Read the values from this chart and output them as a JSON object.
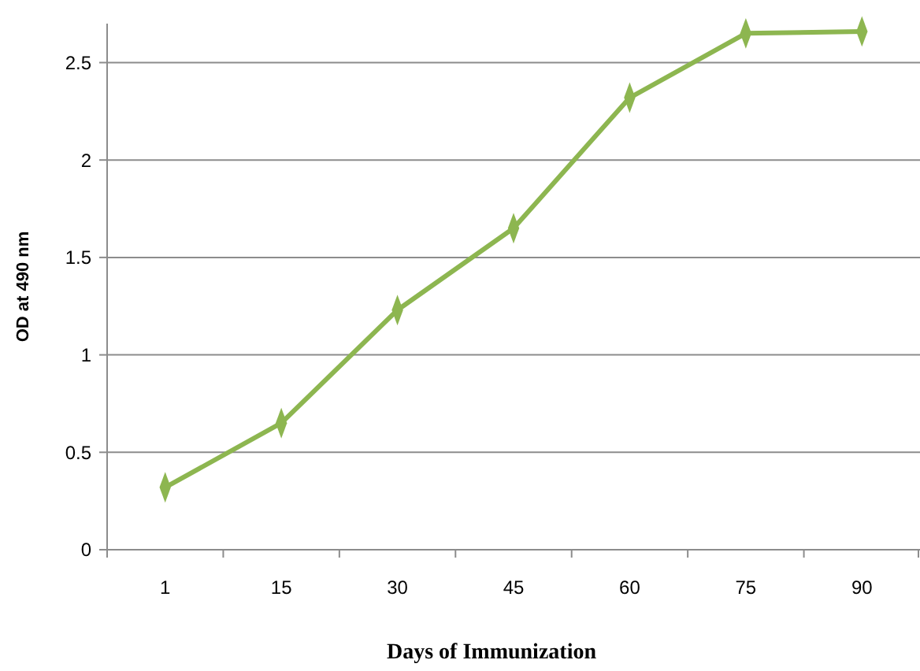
{
  "chart_data": {
    "type": "line",
    "xlabel": "Days of Immunization",
    "ylabel": "OD at 490 nm",
    "categories": [
      "1",
      "15",
      "30",
      "45",
      "60",
      "75",
      "90"
    ],
    "series": [
      {
        "color": "#8db650",
        "values": [
          0.32,
          0.65,
          1.23,
          1.65,
          2.32,
          2.65,
          2.66
        ]
      }
    ],
    "ylim": [
      0,
      2.7
    ],
    "yticks": [
      0,
      0.5,
      1,
      1.5,
      2,
      2.5
    ],
    "grid": "y",
    "marker": "diamond",
    "line_style": "solid"
  }
}
